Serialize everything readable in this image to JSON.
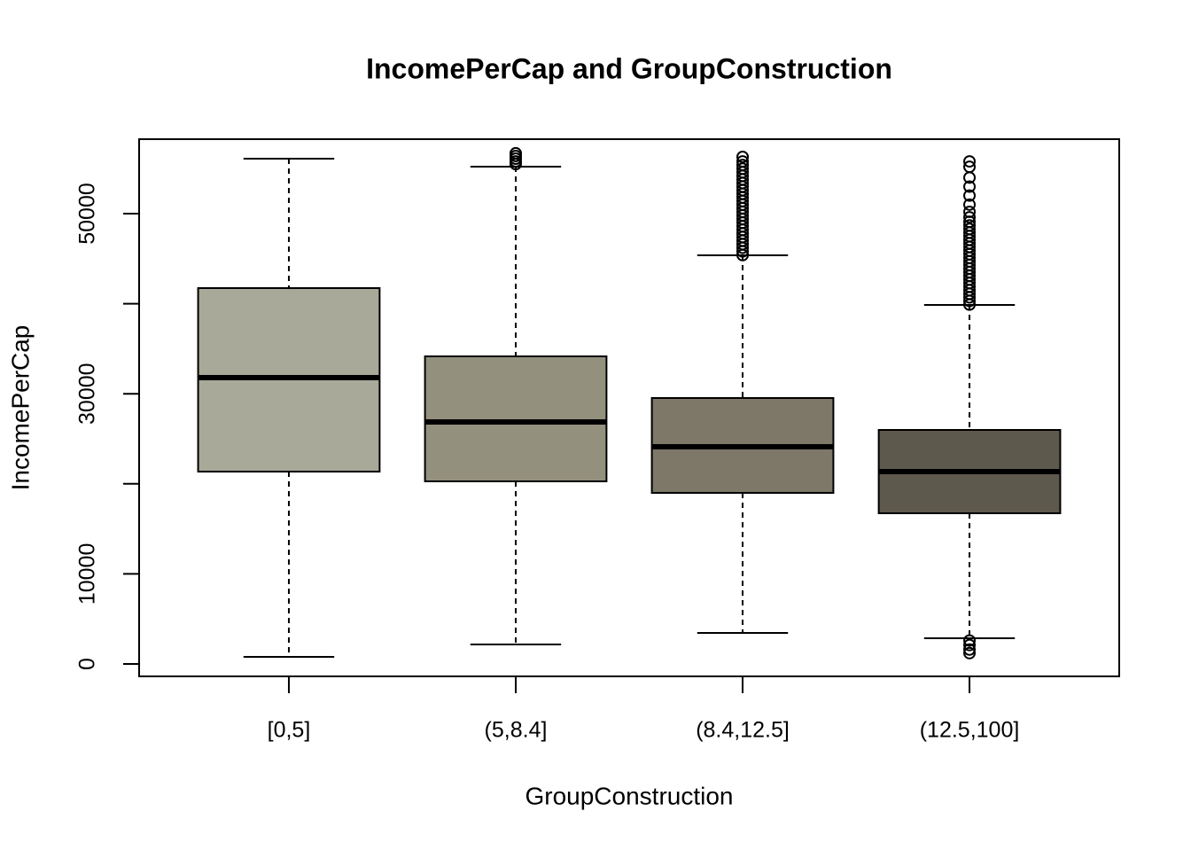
{
  "chart_data": {
    "type": "boxplot",
    "title": "IncomePerCap and GroupConstruction",
    "x_label": "GroupConstruction",
    "y_label": "IncomePerCap",
    "categories": [
      "[0,5]",
      "(5,8.4]",
      "(8.4,12.5]",
      "(12.5,100]"
    ],
    "colors": [
      "#a9a999",
      "#94907e",
      "#7d7868",
      "#5e594d"
    ],
    "boxes": [
      {
        "whisker_low": 787,
        "q1": 21358,
        "median": 31791,
        "q3": 41732,
        "whisker_high": 56102,
        "outliers": []
      },
      {
        "whisker_low": 2165,
        "q1": 20276,
        "median": 26870,
        "q3": 34154,
        "whisker_high": 55217,
        "outliers": [
          55500,
          55800,
          56100,
          56400,
          56700
        ]
      },
      {
        "whisker_low": 3445,
        "q1": 18996,
        "median": 24114,
        "q3": 29528,
        "whisker_high": 45374,
        "outliers": [
          45400,
          45800,
          46200,
          46600,
          47000,
          47400,
          47800,
          48200,
          48600,
          49000,
          49400,
          49800,
          50200,
          50600,
          51000,
          51400,
          51800,
          52200,
          52600,
          53000,
          53400,
          53800,
          54200,
          54600,
          55000,
          55400,
          55800,
          56300
        ]
      },
      {
        "whisker_low": 2854,
        "q1": 16732,
        "median": 21358,
        "q3": 25984,
        "whisker_high": 39862,
        "outliers": [
          39900,
          40300,
          40700,
          41100,
          41500,
          41900,
          42300,
          42700,
          43100,
          43500,
          43900,
          44300,
          44700,
          45100,
          45500,
          45900,
          46300,
          46700,
          47100,
          47500,
          47900,
          48300,
          48700,
          49100,
          49600,
          50200,
          51000,
          52000,
          53000,
          54000,
          55200,
          55800,
          2600,
          2100,
          1600,
          1200
        ]
      }
    ],
    "ylim": [
      -1378,
      58268
    ],
    "yticks": [
      0,
      10000,
      30000,
      50000
    ],
    "minor_yticks": [
      20000,
      40000
    ]
  }
}
